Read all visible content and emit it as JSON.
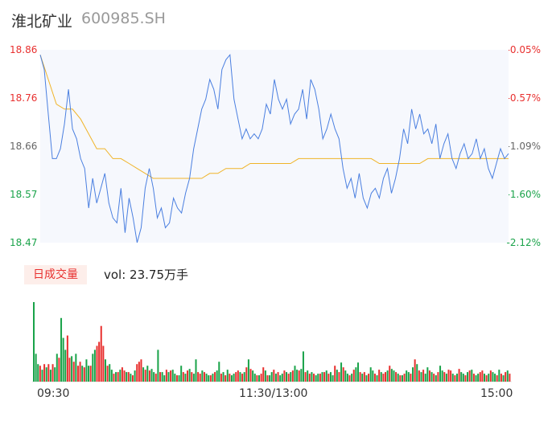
{
  "header": {
    "name": "淮北矿业",
    "code": "600985.SH"
  },
  "price_axis": {
    "left_ticks": [
      "18.86",
      "18.76",
      "18.66",
      "18.57",
      "18.47"
    ],
    "right_ticks": [
      "-0.05%",
      "-0.57%",
      "-1.09%",
      "-1.60%",
      "-2.12%"
    ],
    "colors": {
      "up": "#e8302f",
      "flat": "#666666",
      "down": "#1aa34a"
    }
  },
  "volume_panel": {
    "tab_label": "日成交量",
    "vol_label": "vol: 23.75万手"
  },
  "time_axis": {
    "labels": [
      "09:30",
      "11:30/13:00",
      "15:00"
    ]
  },
  "chart_data": [
    {
      "type": "line",
      "x_range": [
        "09:30",
        "15:00"
      ],
      "ylim": [
        18.47,
        18.86
      ],
      "y_ticks": [
        18.86,
        18.76,
        18.66,
        18.57,
        18.47
      ],
      "right_ticks_pct": [
        -0.05,
        -0.57,
        -1.09,
        -1.6,
        -2.12
      ],
      "grid": false,
      "series": [
        {
          "role": "price",
          "color": "#4a7fe0",
          "values": [
            18.85,
            18.82,
            18.73,
            18.64,
            18.64,
            18.66,
            18.71,
            18.78,
            18.7,
            18.68,
            18.64,
            18.62,
            18.54,
            18.6,
            18.55,
            18.58,
            18.61,
            18.55,
            18.52,
            18.51,
            18.58,
            18.49,
            18.56,
            18.52,
            18.47,
            18.5,
            18.58,
            18.62,
            18.58,
            18.52,
            18.54,
            18.5,
            18.51,
            18.56,
            18.54,
            18.53,
            18.57,
            18.6,
            18.66,
            18.7,
            18.74,
            18.76,
            18.8,
            18.78,
            18.74,
            18.82,
            18.84,
            18.85,
            18.76,
            18.72,
            18.68,
            18.7,
            18.68,
            18.69,
            18.68,
            18.7,
            18.75,
            18.73,
            18.8,
            18.76,
            18.74,
            18.76,
            18.71,
            18.73,
            18.74,
            18.78,
            18.72,
            18.8,
            18.78,
            18.74,
            18.68,
            18.7,
            18.73,
            18.7,
            18.68,
            18.62,
            18.58,
            18.6,
            18.56,
            18.61,
            18.56,
            18.54,
            18.57,
            18.58,
            18.56,
            18.6,
            18.62,
            18.57,
            18.6,
            18.64,
            18.7,
            18.67,
            18.74,
            18.7,
            18.73,
            18.69,
            18.7,
            18.67,
            18.71,
            18.64,
            18.67,
            18.69,
            18.64,
            18.62,
            18.65,
            18.67,
            18.64,
            18.65,
            18.68,
            18.64,
            18.66,
            18.62,
            18.6,
            18.63,
            18.66,
            18.64,
            18.65
          ],
          "note_resolution": "approximate, sampled evenly across the session"
        },
        {
          "role": "average",
          "color": "#f0b429",
          "values": [
            18.85,
            18.8,
            18.75,
            18.74,
            18.74,
            18.72,
            18.69,
            18.66,
            18.66,
            18.64,
            18.64,
            18.63,
            18.62,
            18.61,
            18.6,
            18.6,
            18.6,
            18.6,
            18.6,
            18.6,
            18.6,
            18.61,
            18.61,
            18.62,
            18.62,
            18.62,
            18.63,
            18.63,
            18.63,
            18.63,
            18.63,
            18.63,
            18.64,
            18.64,
            18.64,
            18.64,
            18.64,
            18.64,
            18.64,
            18.64,
            18.64,
            18.64,
            18.63,
            18.63,
            18.63,
            18.63,
            18.63,
            18.63,
            18.64,
            18.64,
            18.64,
            18.64,
            18.64,
            18.64,
            18.64,
            18.64,
            18.64,
            18.64,
            18.64
          ]
        }
      ]
    },
    {
      "type": "bar",
      "title": "日成交量",
      "up_color": "#e8302f",
      "down_color": "#1aa34a",
      "values": [
        100,
        35,
        22,
        20,
        15,
        22,
        18,
        22,
        15,
        22,
        18,
        35,
        30,
        80,
        55,
        40,
        58,
        30,
        32,
        25,
        35,
        20,
        25,
        20,
        18,
        28,
        20,
        20,
        35,
        40,
        45,
        50,
        70,
        45,
        28,
        20,
        22,
        15,
        10,
        12,
        12,
        15,
        18,
        14,
        12,
        12,
        10,
        8,
        14,
        22,
        25,
        28,
        18,
        15,
        20,
        14,
        16,
        12,
        10,
        40,
        12,
        12,
        8,
        15,
        12,
        14,
        15,
        10,
        8,
        8,
        20,
        12,
        10,
        14,
        16,
        12,
        10,
        28,
        12,
        10,
        14,
        12,
        10,
        8,
        8,
        10,
        12,
        14,
        25,
        10,
        12,
        8,
        15,
        10,
        8,
        10,
        12,
        14,
        12,
        10,
        12,
        18,
        28,
        16,
        14,
        10,
        8,
        8,
        10,
        18,
        14,
        8,
        8,
        12,
        15,
        10,
        12,
        8,
        10,
        14,
        12,
        10,
        12,
        14,
        20,
        15,
        14,
        16,
        38,
        12,
        14,
        10,
        12,
        10,
        8,
        10,
        10,
        12,
        12,
        14,
        10,
        12,
        8,
        20,
        15,
        12,
        24,
        18,
        14,
        10,
        8,
        10,
        15,
        18,
        24,
        12,
        10,
        12,
        8,
        10,
        18,
        14,
        10,
        8,
        15,
        12,
        10,
        12,
        14,
        20,
        16,
        14,
        12,
        10,
        8,
        8,
        10,
        14,
        12,
        10,
        18,
        28,
        22,
        14,
        12,
        15,
        10,
        18,
        14,
        12,
        10,
        8,
        12,
        20,
        14,
        12,
        10,
        15,
        14,
        10,
        8,
        10,
        16,
        12,
        10,
        8,
        12,
        14,
        15,
        10,
        8,
        10,
        12,
        14,
        10,
        8,
        10,
        14,
        12,
        10,
        8,
        15,
        10,
        8,
        12,
        14,
        10
      ],
      "up_flags": [
        0,
        0,
        0,
        1,
        0,
        1,
        0,
        1,
        0,
        1,
        0,
        0,
        1,
        0,
        0,
        0,
        1,
        1,
        0,
        1,
        0,
        1,
        1,
        0,
        1,
        0,
        0,
        1,
        0,
        0,
        1,
        1,
        1,
        1,
        0,
        1,
        0,
        0,
        1,
        0,
        1,
        0,
        1,
        1,
        0,
        1,
        0,
        1,
        0,
        1,
        1,
        1,
        0,
        1,
        0,
        1,
        0,
        0,
        1,
        0,
        1,
        0,
        0,
        1,
        0,
        1,
        0,
        0,
        1,
        0,
        0,
        1,
        0,
        1,
        0,
        1,
        0,
        0,
        1,
        1,
        0,
        1,
        0,
        0,
        1,
        0,
        1,
        0,
        0,
        1,
        0,
        1,
        0,
        1,
        0,
        0,
        1,
        1,
        0,
        1,
        0,
        1,
        0,
        1,
        0,
        0,
        1,
        0,
        1,
        1,
        0,
        1,
        0,
        0,
        1,
        0,
        1,
        0,
        0,
        1,
        0,
        1,
        0,
        1,
        0,
        0,
        1,
        0,
        0,
        1,
        0,
        1,
        0,
        1,
        0,
        0,
        1,
        0,
        1,
        0,
        1,
        0,
        0,
        1,
        0,
        1,
        0,
        1,
        0,
        0,
        1,
        0,
        1,
        0,
        0,
        1,
        0,
        1,
        0,
        1,
        0,
        0,
        1,
        0,
        1,
        0,
        1,
        1,
        0,
        1,
        0,
        0,
        1,
        0,
        1,
        0,
        1,
        0,
        0,
        1,
        0,
        1,
        0,
        1,
        0,
        1,
        0,
        0,
        1,
        0,
        1,
        0,
        1,
        0,
        0,
        1,
        0,
        1,
        1,
        0,
        1,
        0,
        1,
        0,
        0,
        1,
        0,
        1,
        0,
        1,
        0,
        0,
        1,
        1,
        0,
        1,
        0,
        1,
        0,
        0,
        1,
        0,
        1,
        0,
        1,
        0,
        1
      ],
      "value_scale": "relative to tallest bar = 100"
    }
  ]
}
